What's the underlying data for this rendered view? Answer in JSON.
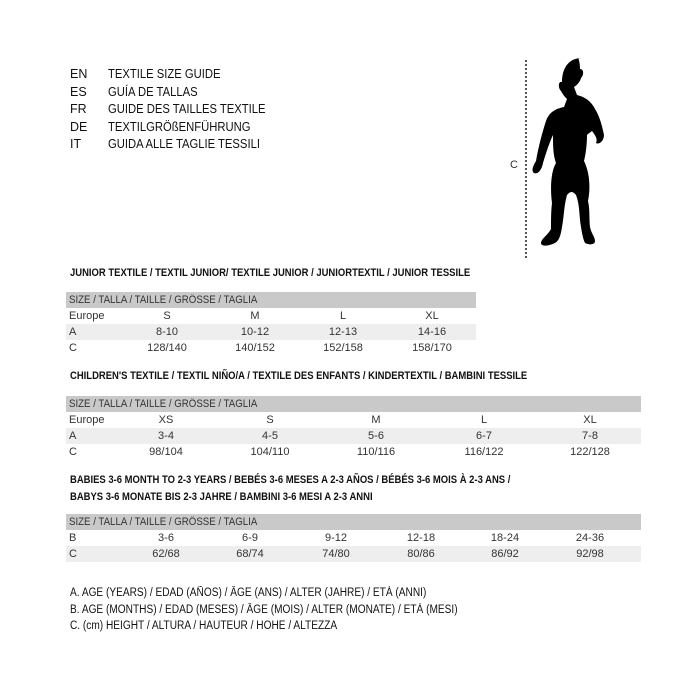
{
  "languages": [
    {
      "code": "EN",
      "text": "TEXTILE SIZE GUIDE"
    },
    {
      "code": "ES",
      "text": "GUÍA DE TALLAS"
    },
    {
      "code": "FR",
      "text": "GUIDE DES TAILLES TEXTILE"
    },
    {
      "code": "DE",
      "text": "TEXTILGRÖßENFÜHRUNG"
    },
    {
      "code": "IT",
      "text": "GUIDA ALLE TAGLIE TESSILI"
    }
  ],
  "figure": {
    "label": "C",
    "icon": "child-silhouette-icon"
  },
  "junior": {
    "title": "JUNIOR TEXTILE / TEXTIL JUNIOR/ TEXTILE JUNIOR / JUNIORTEXTIL / JUNIOR TESSILE",
    "header": "SIZE / TALLA / TAILLE / GRÖSSE / TAGLIA",
    "rows": [
      {
        "label": "Europe",
        "values": [
          "S",
          "M",
          "L",
          "XL"
        ]
      },
      {
        "label": "A",
        "values": [
          "8-10",
          "10-12",
          "12-13",
          "14-16"
        ]
      },
      {
        "label": "C",
        "values": [
          "128/140",
          "140/152",
          "152/158",
          "158/170"
        ]
      }
    ]
  },
  "children": {
    "title": "CHILDREN'S TEXTILE / TEXTIL NIÑO/A / TEXTILE DES ENFANTS / KINDERTEXTIL / BAMBINI TESSILE",
    "header": "SIZE / TALLA / TAILLE / GRÖSSE / TAGLIA",
    "rows": [
      {
        "label": "Europe",
        "values": [
          "XS",
          "S",
          "M",
          "L",
          "XL"
        ]
      },
      {
        "label": "A",
        "values": [
          "3-4",
          "4-5",
          "5-6",
          "6-7",
          "7-8"
        ]
      },
      {
        "label": "C",
        "values": [
          "98/104",
          "104/110",
          "110/116",
          "116/122",
          "122/128"
        ]
      }
    ]
  },
  "babies": {
    "title1": "BABIES 3-6 MONTH TO 2-3 YEARS / BEBÉS 3-6 MESES A 2-3 AÑOS / BÉBÉS 3-6 MOIS À 2-3 ANS /",
    "title2": "BABYS 3-6 MONATE BIS 2-3 JAHRE / BAMBINI 3-6 MESI A 2-3 ANNI",
    "header": "SIZE / TALLA / TAILLE / GRÖSSE / TAGLIA",
    "rows": [
      {
        "label": "B",
        "values": [
          "3-6",
          "6-9",
          "9-12",
          "12-18",
          "18-24",
          "24-36"
        ]
      },
      {
        "label": "C",
        "values": [
          "62/68",
          "68/74",
          "74/80",
          "80/86",
          "86/92",
          "92/98"
        ]
      }
    ]
  },
  "legend": [
    "A. AGE (YEARS) / EDAD (AÑOS) / ÂGE (ANS) / ALTER (JAHRE) / ETÀ (ANNI)",
    "B. AGE (MONTHS) / EDAD (MESES) / ÂGE (MOIS) / ALTER (MONATE) / ETÀ (MESI)",
    "C. (cm) HEIGHT / ALTURA / HAUTEUR / HÖHE / ALTEZZA"
  ]
}
